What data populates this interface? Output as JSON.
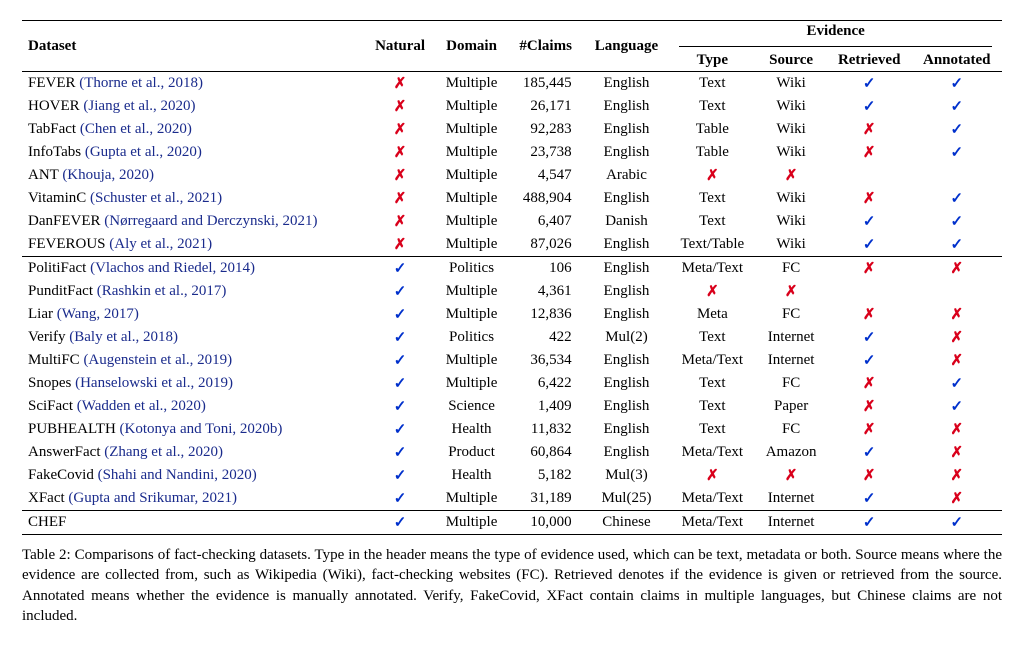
{
  "colors": {
    "link": "#1a2b8c",
    "check": "#0030cc",
    "cross": "#d9001b",
    "text": "#000000",
    "bg": "#ffffff",
    "rule": "#000000"
  },
  "icons": {
    "check": "✓",
    "cross": "✗"
  },
  "header": {
    "dataset": "Dataset",
    "natural": "Natural",
    "domain": "Domain",
    "claims": "#Claims",
    "language": "Language",
    "evidence_group": "Evidence",
    "type": "Type",
    "source": "Source",
    "retrieved": "Retrieved",
    "annotated": "Annotated"
  },
  "groups": [
    {
      "rows": [
        {
          "name": "FEVER",
          "cite": "(Thorne et al., 2018)",
          "natural": "cross",
          "domain": "Multiple",
          "claims": "185,445",
          "language": "English",
          "type": "Text",
          "source": "Wiki",
          "retrieved": "check",
          "annotated": "check"
        },
        {
          "name": "HOVER",
          "cite": "(Jiang et al., 2020)",
          "natural": "cross",
          "domain": "Multiple",
          "claims": "26,171",
          "language": "English",
          "type": "Text",
          "source": "Wiki",
          "retrieved": "check",
          "annotated": "check"
        },
        {
          "name": "TabFact",
          "cite": "(Chen et al., 2020)",
          "natural": "cross",
          "domain": "Multiple",
          "claims": "92,283",
          "language": "English",
          "type": "Table",
          "source": "Wiki",
          "retrieved": "cross",
          "annotated": "check"
        },
        {
          "name": "InfoTabs",
          "cite": "(Gupta et al., 2020)",
          "natural": "cross",
          "domain": "Multiple",
          "claims": "23,738",
          "language": "English",
          "type": "Table",
          "source": "Wiki",
          "retrieved": "cross",
          "annotated": "check"
        },
        {
          "name": "ANT",
          "cite": "(Khouja, 2020)",
          "natural": "cross",
          "domain": "Multiple",
          "claims": "4,547",
          "language": "Arabic",
          "type": "cross",
          "source": "cross",
          "retrieved": "",
          "annotated": ""
        },
        {
          "name": "VitaminC",
          "cite": "(Schuster et al., 2021)",
          "natural": "cross",
          "domain": "Multiple",
          "claims": "488,904",
          "language": "English",
          "type": "Text",
          "source": "Wiki",
          "retrieved": "cross",
          "annotated": "check"
        },
        {
          "name": "DanFEVER",
          "cite": "(Nørregaard and Derczynski, 2021)",
          "natural": "cross",
          "domain": "Multiple",
          "claims": "6,407",
          "language": "Danish",
          "type": "Text",
          "source": "Wiki",
          "retrieved": "check",
          "annotated": "check"
        },
        {
          "name": "FEVEROUS",
          "cite": "(Aly et al., 2021)",
          "natural": "cross",
          "domain": "Multiple",
          "claims": "87,026",
          "language": "English",
          "type": "Text/Table",
          "source": "Wiki",
          "retrieved": "check",
          "annotated": "check"
        }
      ]
    },
    {
      "rows": [
        {
          "name": "PolitiFact",
          "cite": "(Vlachos and Riedel, 2014)",
          "natural": "check",
          "domain": "Politics",
          "claims": "106",
          "language": "English",
          "type": "Meta/Text",
          "source": "FC",
          "retrieved": "cross",
          "annotated": "cross"
        },
        {
          "name": "PunditFact",
          "cite": "(Rashkin et al., 2017)",
          "natural": "check",
          "domain": "Multiple",
          "claims": "4,361",
          "language": "English",
          "type": "cross",
          "source": "cross",
          "retrieved": "",
          "annotated": ""
        },
        {
          "name": "Liar",
          "cite": "(Wang, 2017)",
          "natural": "check",
          "domain": "Multiple",
          "claims": "12,836",
          "language": "English",
          "type": "Meta",
          "source": "FC",
          "retrieved": "cross",
          "annotated": "cross"
        },
        {
          "name": "Verify",
          "cite": "(Baly et al., 2018)",
          "natural": "check",
          "domain": "Politics",
          "claims": "422",
          "language": "Mul(2)",
          "type": "Text",
          "source": "Internet",
          "retrieved": "check",
          "annotated": "cross"
        },
        {
          "name": "MultiFC",
          "cite": "(Augenstein et al., 2019)",
          "natural": "check",
          "domain": "Multiple",
          "claims": "36,534",
          "language": "English",
          "type": "Meta/Text",
          "source": "Internet",
          "retrieved": "check",
          "annotated": "cross"
        },
        {
          "name": "Snopes",
          "cite": "(Hanselowski et al., 2019)",
          "natural": "check",
          "domain": "Multiple",
          "claims": "6,422",
          "language": "English",
          "type": "Text",
          "source": "FC",
          "retrieved": "cross",
          "annotated": "check"
        },
        {
          "name": "SciFact",
          "cite": "(Wadden et al., 2020)",
          "natural": "check",
          "domain": "Science",
          "claims": "1,409",
          "language": "English",
          "type": "Text",
          "source": "Paper",
          "retrieved": "cross",
          "annotated": "check"
        },
        {
          "name": "PUBHEALTH",
          "cite": "(Kotonya and Toni, 2020b)",
          "natural": "check",
          "domain": "Health",
          "claims": "11,832",
          "language": "English",
          "type": "Text",
          "source": "FC",
          "retrieved": "cross",
          "annotated": "cross"
        },
        {
          "name": "AnswerFact",
          "cite": "(Zhang et al., 2020)",
          "natural": "check",
          "domain": "Product",
          "claims": "60,864",
          "language": "English",
          "type": "Meta/Text",
          "source": "Amazon",
          "retrieved": "check",
          "annotated": "cross"
        },
        {
          "name": "FakeCovid",
          "cite": "(Shahi and Nandini, 2020)",
          "natural": "check",
          "domain": "Health",
          "claims": "5,182",
          "language": "Mul(3)",
          "type": "cross",
          "source": "cross",
          "retrieved": "cross",
          "annotated": "cross"
        },
        {
          "name": "XFact",
          "cite": "(Gupta and Srikumar, 2021)",
          "natural": "check",
          "domain": "Multiple",
          "claims": "31,189",
          "language": "Mul(25)",
          "type": "Meta/Text",
          "source": "Internet",
          "retrieved": "check",
          "annotated": "cross"
        }
      ]
    },
    {
      "rows": [
        {
          "name": "CHEF",
          "cite": "",
          "natural": "check",
          "domain": "Multiple",
          "claims": "10,000",
          "language": "Chinese",
          "type": "Meta/Text",
          "source": "Internet",
          "retrieved": "check",
          "annotated": "check"
        }
      ]
    }
  ],
  "caption": "Table 2: Comparisons of fact-checking datasets. Type in the header means the type of evidence used, which can be text, metadata or both. Source means where the evidence are collected from, such as Wikipedia (Wiki), fact-checking websites (FC). Retrieved denotes if the evidence is given or retrieved from the source. Annotated means whether the evidence is manually annotated. Verify, FakeCovid, XFact contain claims in multiple languages, but Chinese claims are not included."
}
